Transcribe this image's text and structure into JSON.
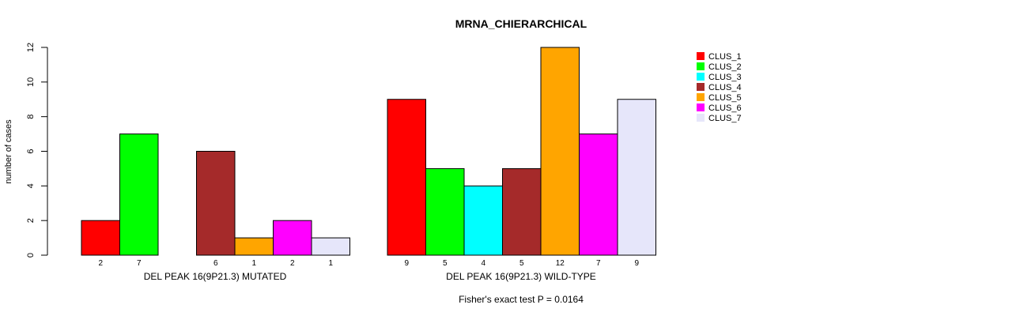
{
  "chart_data": {
    "type": "bar",
    "title": "MRNA_CHIERARCHICAL",
    "ylabel": "number of cases",
    "ylim": [
      0,
      12
    ],
    "yticks": [
      "0",
      "2",
      "4",
      "6",
      "8",
      "10",
      "12"
    ],
    "series_names": [
      "CLUS_1",
      "CLUS_2",
      "CLUS_3",
      "CLUS_4",
      "CLUS_5",
      "CLUS_6",
      "CLUS_7"
    ],
    "colors": [
      "#ff0000",
      "#00ff00",
      "#00ffff",
      "#a52a2a",
      "#ffa500",
      "#ff00ff",
      "#e6e6fa"
    ],
    "groups": [
      {
        "name": "DEL PEAK 16(9P21.3) MUTATED",
        "values": [
          2,
          7,
          0,
          6,
          1,
          2,
          1
        ],
        "value_labels": [
          "2",
          "7",
          "",
          "6",
          "1",
          "2",
          "1"
        ]
      },
      {
        "name": "DEL PEAK 16(9P21.3) WILD-TYPE",
        "values": [
          9,
          5,
          4,
          5,
          12,
          7,
          9
        ],
        "value_labels": [
          "9",
          "5",
          "4",
          "5",
          "12",
          "7",
          "9"
        ]
      }
    ],
    "footnote": "Fisher's exact test P = 0.0164",
    "legend_position": "top-right"
  }
}
